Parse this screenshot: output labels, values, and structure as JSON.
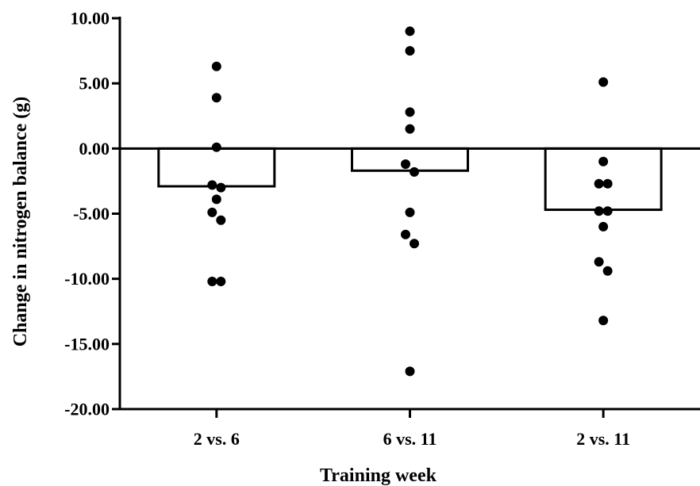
{
  "chart_data": {
    "type": "bar",
    "title": "",
    "xlabel": "Training week",
    "ylabel": "Change in nitrogen balance (g)",
    "ylim": [
      -20,
      10
    ],
    "yticks": [
      {
        "value": 10,
        "label": "10.00"
      },
      {
        "value": 5,
        "label": "5.00"
      },
      {
        "value": 0,
        "label": "0.00"
      },
      {
        "value": -5,
        "label": "-5.00"
      },
      {
        "value": -10,
        "label": "-10.00"
      },
      {
        "value": -15,
        "label": "-15.00"
      },
      {
        "value": -20,
        "label": "-20.00"
      }
    ],
    "categories": [
      "2 vs. 6",
      "6 vs. 11",
      "2 vs. 11"
    ],
    "values": [
      -2.9,
      -1.7,
      -4.7
    ],
    "points": [
      [
        6.3,
        3.9,
        0.1,
        -2.8,
        -3.0,
        -3.9,
        -4.9,
        -5.5,
        -10.2,
        -10.2
      ],
      [
        9.0,
        7.5,
        2.8,
        1.5,
        -1.2,
        -1.8,
        -4.9,
        -6.6,
        -7.3,
        -17.1
      ],
      [
        5.1,
        -1.0,
        -2.7,
        -2.7,
        -4.8,
        -4.8,
        -6.0,
        -8.7,
        -9.4,
        -13.2
      ]
    ],
    "colors": {
      "bar_stroke": "#000000",
      "point": "#000000",
      "axis": "#000000"
    },
    "grid": false,
    "legend": "none"
  }
}
